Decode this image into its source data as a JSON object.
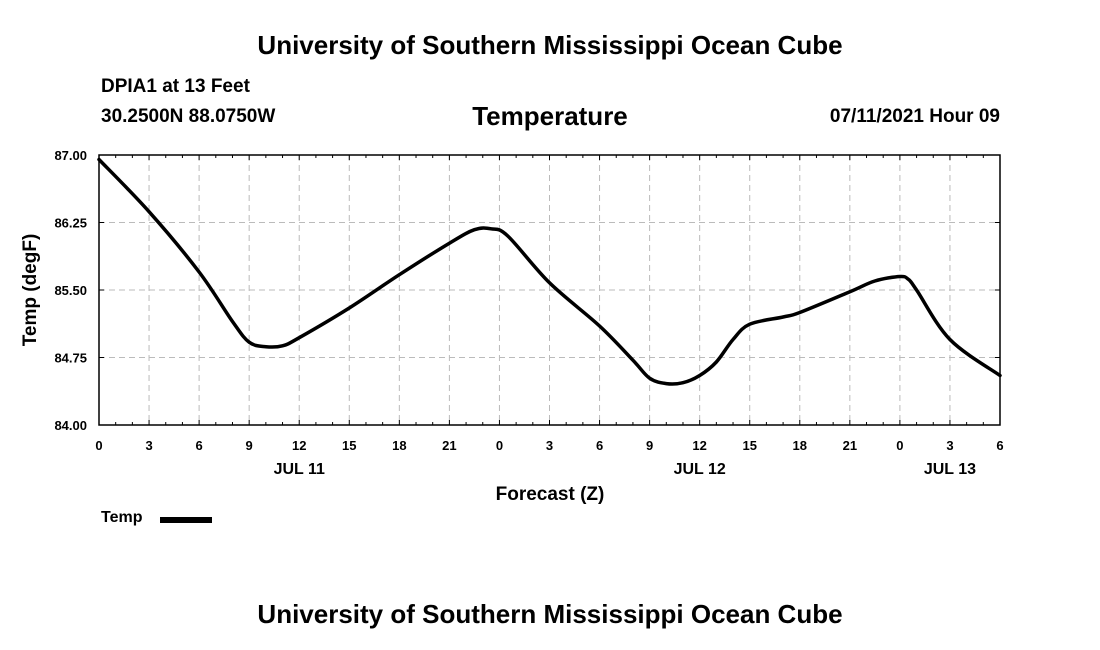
{
  "header": {
    "title_top": "University of Southern Mississippi Ocean Cube",
    "title_bottom": "University of Southern Mississippi Ocean Cube",
    "station": "DPIA1 at 13 Feet",
    "coords": "30.2500N  88.0750W",
    "datetime": "07/11/2021 Hour 09"
  },
  "chart_data": {
    "type": "line",
    "title": "Temperature",
    "xlabel": "Forecast (Z)",
    "ylabel": "Temp (degF)",
    "ylim": [
      84.0,
      87.0
    ],
    "xlim": [
      0,
      54
    ],
    "x_unit": "hours since JUL 11 00Z",
    "yticks": [
      "84.00",
      "84.75",
      "85.50",
      "86.25",
      "87.00"
    ],
    "xticks": [
      "0",
      "3",
      "6",
      "9",
      "12",
      "15",
      "18",
      "21",
      "0",
      "3",
      "6",
      "9",
      "12",
      "15",
      "18",
      "21",
      "0",
      "3",
      "6"
    ],
    "date_labels": [
      {
        "hour": 12,
        "label": "JUL 11"
      },
      {
        "hour": 36,
        "label": "JUL 12"
      },
      {
        "hour": 51,
        "label": "JUL 13"
      }
    ],
    "grid": true,
    "legend": {
      "position": "bottom-left",
      "label": "Temp"
    },
    "series": [
      {
        "name": "Temp",
        "x": [
          0,
          3,
          6,
          8,
          9,
          10,
          11,
          12,
          15,
          18,
          21,
          22.5,
          23.5,
          24.5,
          27,
          30,
          32,
          33,
          34,
          35,
          36,
          37,
          38,
          39,
          41,
          42,
          45,
          46.5,
          48,
          48.5,
          49,
          51,
          54
        ],
        "values": [
          86.95,
          86.37,
          85.7,
          85.15,
          84.92,
          84.87,
          84.88,
          84.97,
          85.3,
          85.67,
          86.02,
          86.17,
          86.18,
          86.1,
          85.58,
          85.1,
          84.72,
          84.52,
          84.46,
          84.47,
          84.55,
          84.7,
          84.95,
          85.12,
          85.2,
          85.25,
          85.48,
          85.6,
          85.65,
          85.62,
          85.5,
          84.95,
          84.55
        ]
      }
    ]
  }
}
